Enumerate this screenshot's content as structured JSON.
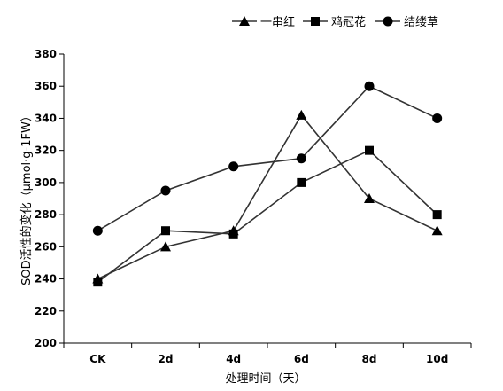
{
  "chart_data": {
    "type": "line",
    "title": "",
    "xlabel": "处理时间（天）",
    "ylabel": "SOD活性的变化（μmol·g-1FW）",
    "categories": [
      "CK",
      "2d",
      "4d",
      "6d",
      "8d",
      "10d"
    ],
    "ylim": [
      200,
      380
    ],
    "yticks": [
      200,
      220,
      240,
      260,
      280,
      300,
      320,
      340,
      360,
      380
    ],
    "grid": false,
    "legend_position": "top",
    "series": [
      {
        "name": "一串红",
        "marker": "triangle",
        "values": [
          240,
          260,
          270,
          342,
          290,
          270
        ]
      },
      {
        "name": "鸡冠花",
        "marker": "square",
        "values": [
          238,
          270,
          268,
          300,
          320,
          280
        ]
      },
      {
        "name": "结缕草",
        "marker": "circle",
        "values": [
          270,
          295,
          310,
          315,
          360,
          340
        ]
      }
    ],
    "colors": {
      "line": "#333333",
      "marker": "#000000",
      "axis": "#000000"
    }
  }
}
